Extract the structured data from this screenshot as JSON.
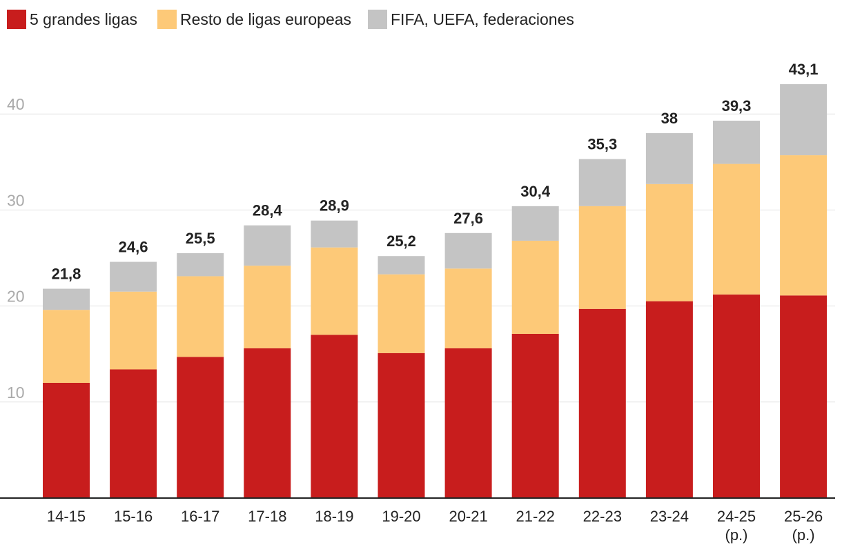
{
  "chart_data": {
    "type": "bar",
    "stacked": true,
    "title": "",
    "xlabel": "",
    "ylabel": "",
    "ylim": [
      0,
      43.1
    ],
    "yticks": [
      10,
      20,
      30,
      40
    ],
    "grid": true,
    "legend_position": "top-left",
    "categories": [
      [
        "14-15"
      ],
      [
        "15-16"
      ],
      [
        "16-17"
      ],
      [
        "17-18"
      ],
      [
        "18-19"
      ],
      [
        "19-20"
      ],
      [
        "20-21"
      ],
      [
        "21-22"
      ],
      [
        "22-23"
      ],
      [
        "23-24"
      ],
      [
        "24-25",
        "(p.)"
      ],
      [
        "25-26",
        "(p.)"
      ]
    ],
    "series": [
      {
        "name": "5 grandes ligas",
        "color": "#c81d1d",
        "values": [
          12.0,
          13.4,
          14.7,
          15.6,
          17.0,
          15.1,
          15.6,
          17.1,
          19.7,
          20.5,
          21.2,
          21.1
        ]
      },
      {
        "name": "Resto de ligas europeas",
        "color": "#fdc978",
        "values": [
          7.6,
          8.1,
          8.4,
          8.6,
          9.1,
          8.2,
          8.3,
          9.7,
          10.7,
          12.2,
          13.6,
          14.6
        ]
      },
      {
        "name": "FIFA, UEFA, federaciones",
        "color": "#c4c4c4",
        "values": [
          2.2,
          3.1,
          2.4,
          4.2,
          2.8,
          1.9,
          3.7,
          3.6,
          4.9,
          5.3,
          4.5,
          7.4
        ]
      }
    ],
    "totals": [
      "21,8",
      "24,6",
      "25,5",
      "28,4",
      "28,9",
      "25,2",
      "27,6",
      "30,4",
      "35,3",
      "38",
      "39,3",
      "43,1"
    ]
  }
}
